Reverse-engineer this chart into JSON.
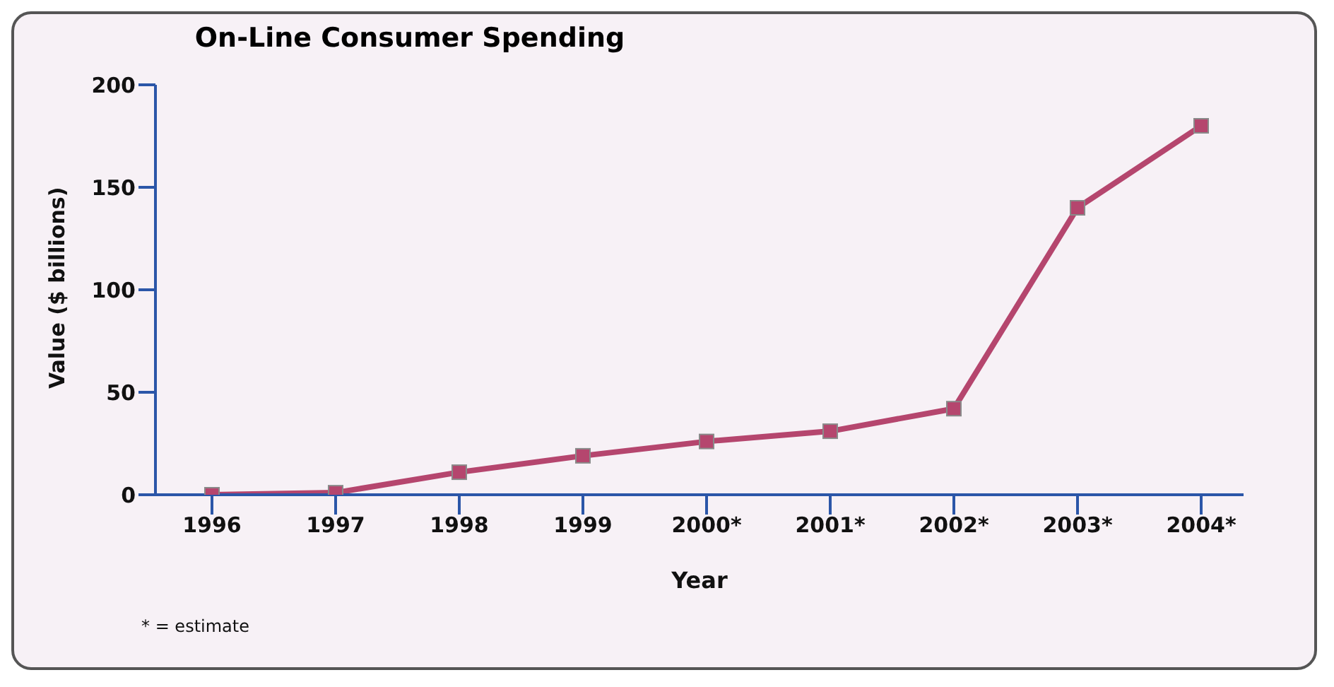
{
  "chart_data": {
    "type": "line",
    "title": "On-Line Consumer Spending",
    "xlabel": "Year",
    "ylabel": "Value ($ billions)",
    "categories": [
      "1996",
      "1997",
      "1998",
      "1999",
      "2000*",
      "2001*",
      "2002*",
      "2003*",
      "2004*"
    ],
    "series": [
      {
        "color": "#b5466e",
        "values": [
          0,
          1,
          11,
          19,
          26,
          31,
          42,
          140,
          180
        ]
      }
    ],
    "ylim": [
      0,
      200
    ],
    "yticks": [
      0,
      50,
      100,
      150,
      200
    ],
    "grid": false,
    "legend": false,
    "marker": "square",
    "line_style": "solid",
    "annotations": [
      "* = estimate"
    ]
  }
}
